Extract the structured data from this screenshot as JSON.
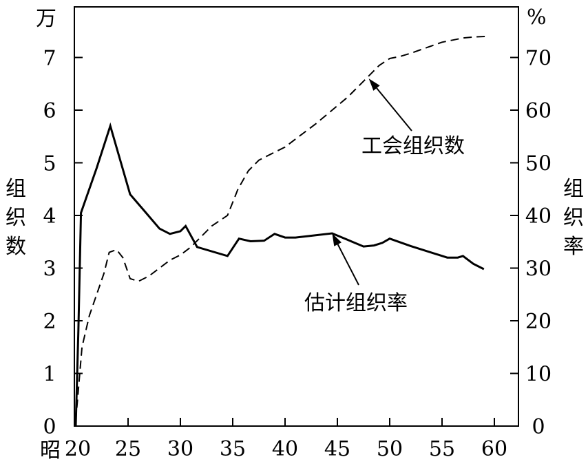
{
  "chart_data": {
    "type": "line",
    "x_axis": {
      "era_label": "昭",
      "min": 20,
      "max": 62,
      "ticks": [
        20,
        25,
        30,
        35,
        40,
        45,
        50,
        55,
        60
      ]
    },
    "y_left": {
      "unit": "万",
      "label_chars": [
        "组",
        "织",
        "数"
      ],
      "min": 0,
      "max": 7.6,
      "ticks": [
        0,
        1,
        2,
        3,
        4,
        5,
        6,
        7
      ]
    },
    "y_right": {
      "unit": "%",
      "label_chars": [
        "组",
        "织",
        "率"
      ],
      "min": 0,
      "max": 76,
      "ticks": [
        0,
        10,
        20,
        30,
        40,
        50,
        60,
        70
      ]
    },
    "series": [
      {
        "name": "工会组织数",
        "axis": "left",
        "line_style": "dashed",
        "points": [
          [
            20,
            0.1
          ],
          [
            20.6,
            1.5
          ],
          [
            21.3,
            2.1
          ],
          [
            22,
            2.5
          ],
          [
            22.7,
            2.9
          ],
          [
            23.2,
            3.3
          ],
          [
            23.9,
            3.35
          ],
          [
            24.5,
            3.2
          ],
          [
            25.2,
            2.8
          ],
          [
            26,
            2.75
          ],
          [
            27,
            2.85
          ],
          [
            28,
            3.0
          ],
          [
            29,
            3.15
          ],
          [
            30,
            3.25
          ],
          [
            31,
            3.4
          ],
          [
            32,
            3.6
          ],
          [
            33,
            3.8
          ],
          [
            34.5,
            4.0
          ],
          [
            35.5,
            4.5
          ],
          [
            36.5,
            4.85
          ],
          [
            37.5,
            5.05
          ],
          [
            38.5,
            5.15
          ],
          [
            40,
            5.3
          ],
          [
            41,
            5.45
          ],
          [
            42,
            5.6
          ],
          [
            43,
            5.75
          ],
          [
            44.5,
            6.0
          ],
          [
            46,
            6.25
          ],
          [
            48,
            6.65
          ],
          [
            49,
            6.85
          ],
          [
            50,
            6.98
          ],
          [
            51,
            7.02
          ],
          [
            52,
            7.08
          ],
          [
            53,
            7.15
          ],
          [
            54,
            7.22
          ],
          [
            55,
            7.29
          ],
          [
            56,
            7.33
          ],
          [
            57,
            7.37
          ],
          [
            58,
            7.39
          ],
          [
            59.3,
            7.4
          ]
        ]
      },
      {
        "name": "估计组织率",
        "axis": "right",
        "line_style": "solid",
        "points": [
          [
            20,
            0
          ],
          [
            20.25,
            18
          ],
          [
            20.5,
            40.5
          ],
          [
            22,
            49
          ],
          [
            23.3,
            57
          ],
          [
            25.2,
            44
          ],
          [
            26.5,
            41
          ],
          [
            28,
            37.5
          ],
          [
            29,
            36.5
          ],
          [
            30,
            37
          ],
          [
            30.5,
            38
          ],
          [
            31.6,
            34
          ],
          [
            34.5,
            32.3
          ],
          [
            35.6,
            35.6
          ],
          [
            36.7,
            35.1
          ],
          [
            38,
            35.2
          ],
          [
            39,
            36.5
          ],
          [
            40,
            35.8
          ],
          [
            41,
            35.8
          ],
          [
            44.5,
            36.6
          ],
          [
            47.5,
            34.1
          ],
          [
            48.5,
            34.3
          ],
          [
            49.3,
            34.8
          ],
          [
            50,
            35.6
          ],
          [
            52,
            34.2
          ],
          [
            55.5,
            32
          ],
          [
            56.5,
            32
          ],
          [
            57,
            32.3
          ],
          [
            58,
            30.8
          ],
          [
            59,
            29.8
          ]
        ]
      }
    ],
    "annotations": [
      {
        "series": "工会组织数",
        "text": "工会组织数",
        "point": [
          48,
          6.6
        ]
      },
      {
        "series": "估计组织率",
        "text": "估计组织率",
        "point": [
          44.5,
          36.6
        ]
      }
    ],
    "grid": false,
    "legend": "none"
  }
}
